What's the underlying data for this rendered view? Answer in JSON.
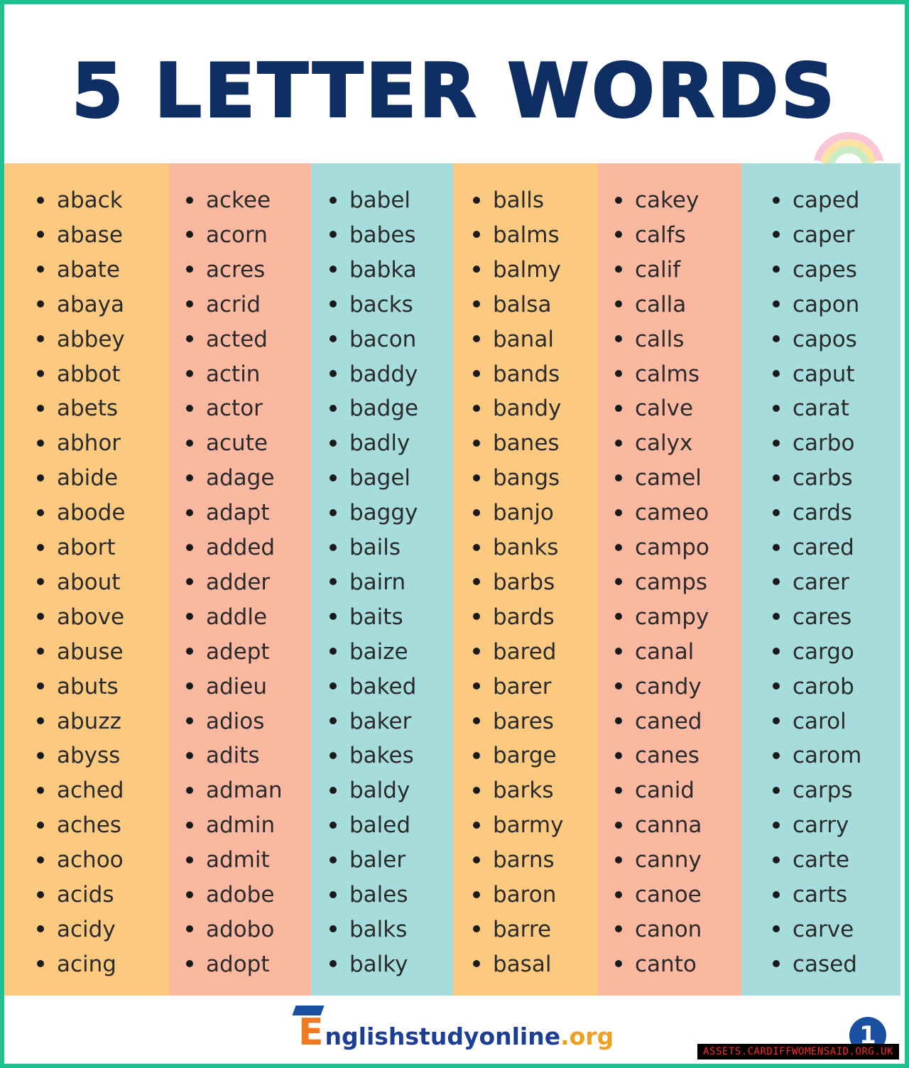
{
  "title": "5 LETTER WORDS",
  "colors": {
    "border": "#1dc18f",
    "title": "#0f2e63",
    "orange": "#fcc980",
    "salmon": "#fab8a0",
    "teal": "#a6dcdc"
  },
  "columns": [
    {
      "color": "orange",
      "words": [
        "aback",
        "abase",
        "abate",
        "abaya",
        "abbey",
        "abbot",
        "abets",
        "abhor",
        "abide",
        "abode",
        "abort",
        "about",
        "above",
        "abuse",
        "abuts",
        "abuzz",
        "abyss",
        "ached",
        "aches",
        "achoo",
        "acids",
        "acidy",
        "acing"
      ]
    },
    {
      "color": "salmon",
      "words": [
        "ackee",
        "acorn",
        "acres",
        "acrid",
        "acted",
        "actin",
        "actor",
        "acute",
        "adage",
        "adapt",
        "added",
        "adder",
        "addle",
        "adept",
        "adieu",
        "adios",
        "adits",
        "adman",
        "admin",
        "admit",
        "adobe",
        "adobo",
        "adopt"
      ]
    },
    {
      "color": "teal",
      "words": [
        "babel",
        "babes",
        "babka",
        "backs",
        "bacon",
        "baddy",
        "badge",
        "badly",
        "bagel",
        "baggy",
        "bails",
        "bairn",
        "baits",
        "baize",
        "baked",
        "baker",
        "bakes",
        "baldy",
        "baled",
        "baler",
        "bales",
        "balks",
        "balky"
      ]
    },
    {
      "color": "orange",
      "words": [
        "balls",
        "balms",
        "balmy",
        "balsa",
        "banal",
        "bands",
        "bandy",
        "banes",
        "bangs",
        "banjo",
        "banks",
        "barbs",
        "bards",
        "bared",
        "barer",
        "bares",
        "barge",
        "barks",
        "barmy",
        "barns",
        "baron",
        "barre",
        "basal"
      ]
    },
    {
      "color": "salmon",
      "words": [
        "cakey",
        "calfs",
        "calif",
        "calla",
        "calls",
        "calms",
        "calve",
        "calyx",
        "camel",
        "cameo",
        "campo",
        "camps",
        "campy",
        "canal",
        "candy",
        "caned",
        "canes",
        "canid",
        "canna",
        "canny",
        "canoe",
        "canon",
        "canto"
      ]
    },
    {
      "color": "teal",
      "words": [
        "caped",
        "caper",
        "capes",
        "capon",
        "capos",
        "caput",
        "carat",
        "carbo",
        "carbs",
        "cards",
        "cared",
        "carer",
        "cares",
        "cargo",
        "carob",
        "carol",
        "carom",
        "carps",
        "carry",
        "carte",
        "carts",
        "carve",
        "cased"
      ]
    }
  ],
  "footer": {
    "logo_initial": "E",
    "logo_text": "nglishstudyonline",
    "logo_tld": ".org",
    "page_number": "1"
  },
  "watermark": "ASSETS.CARDIFFWOMENSAID.ORG.UK"
}
